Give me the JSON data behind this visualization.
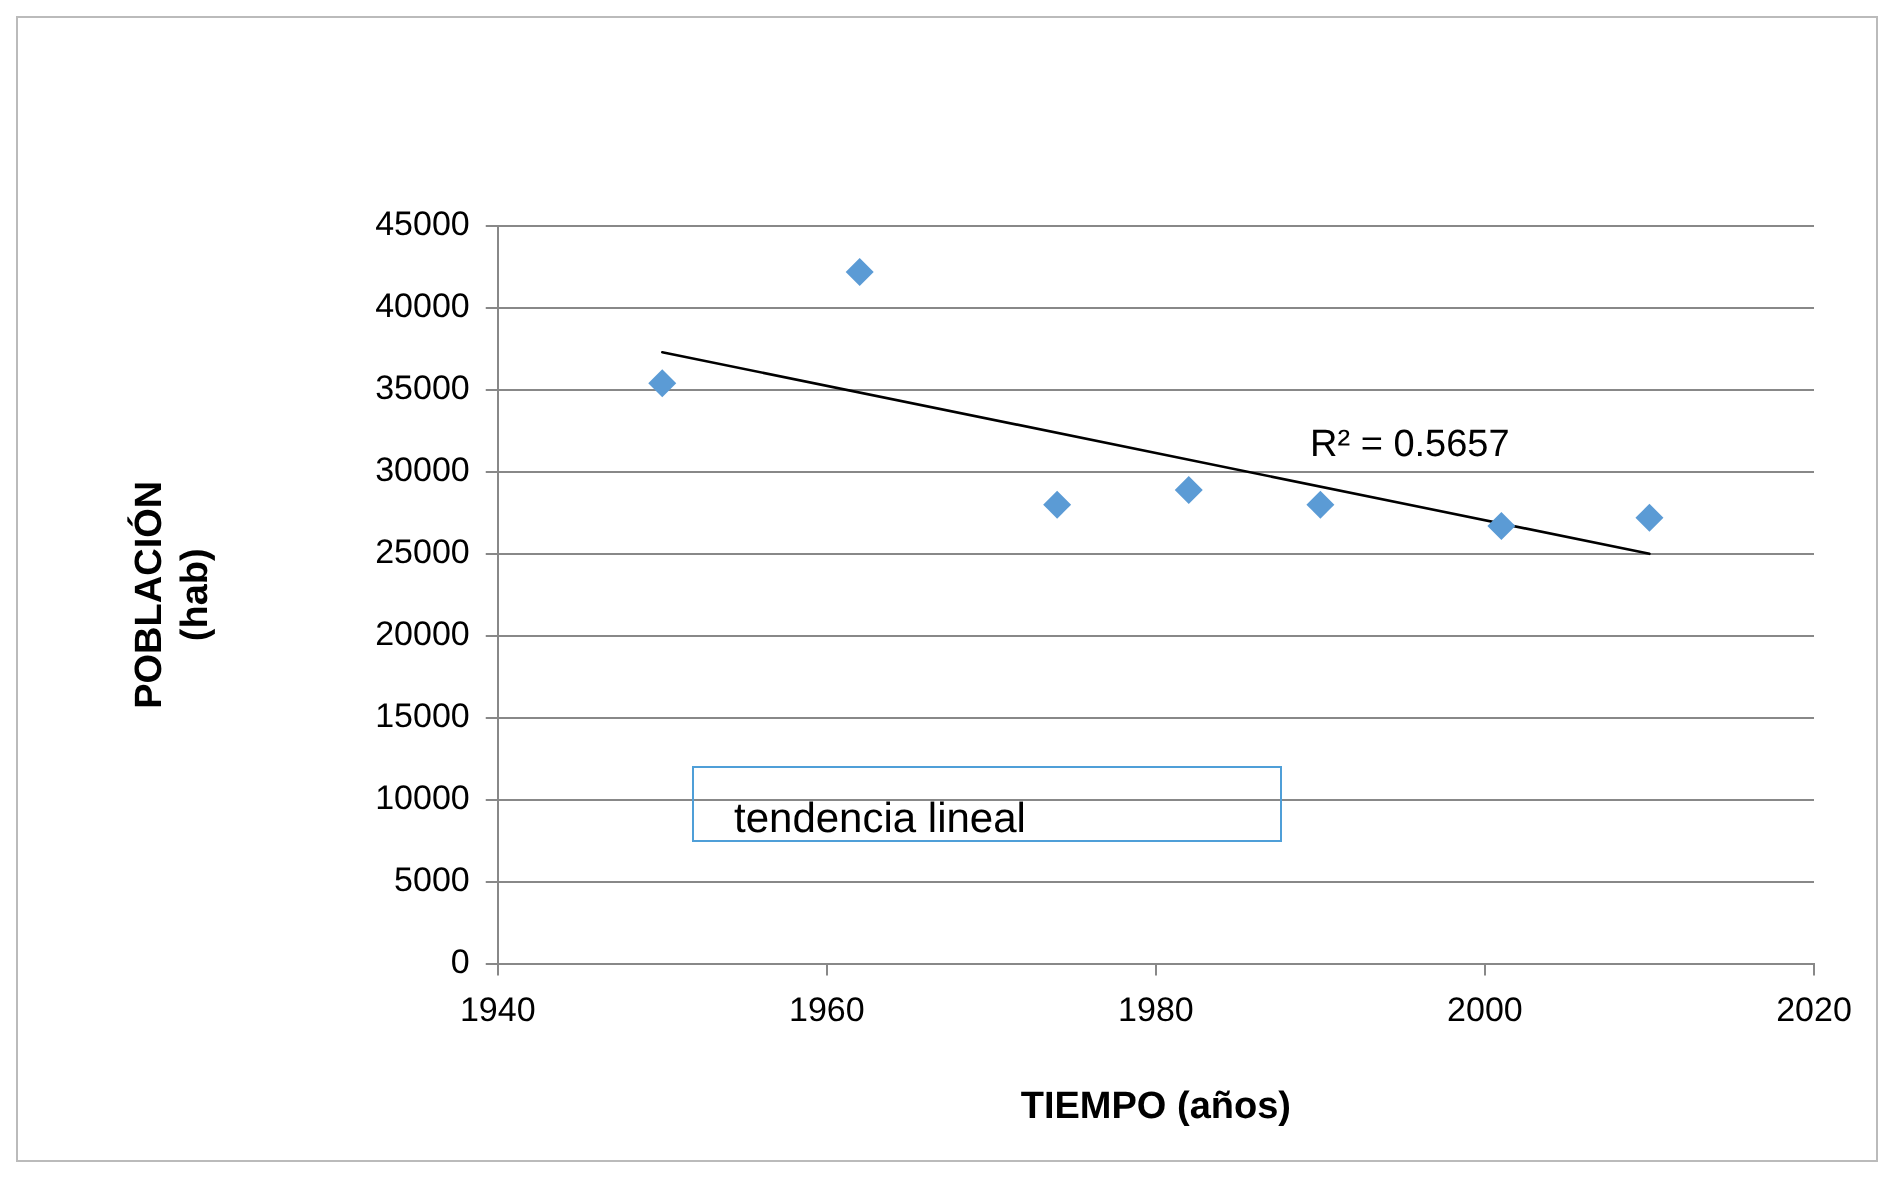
{
  "chart_data": {
    "type": "scatter",
    "xlabel": "TIEMPO (años)",
    "ylabel": "POBLACIÓN (hab)",
    "x": [
      1950,
      1962,
      1974,
      1982,
      1990,
      2001,
      2010
    ],
    "series": [
      {
        "type": "scatter",
        "color": "#5b9bd5",
        "marker": "diamond",
        "values": [
          35400,
          42200,
          28000,
          28900,
          28000,
          26700,
          27200
        ]
      },
      {
        "type": "line",
        "color": "#000000",
        "marker": "none",
        "line_style": "solid",
        "x": [
          1950,
          2010
        ],
        "values": [
          37300,
          25000
        ]
      }
    ],
    "xlim": [
      1940,
      2020
    ],
    "xticks": [
      1940,
      1960,
      1980,
      2000,
      2020
    ],
    "ylim": [
      0,
      45000
    ],
    "yticks": [
      0,
      5000,
      10000,
      15000,
      20000,
      25000,
      30000,
      35000,
      40000,
      45000
    ],
    "grid": "y",
    "legend": false,
    "annotations": [
      "R² = 0.5657",
      "tendencia lineal"
    ]
  }
}
